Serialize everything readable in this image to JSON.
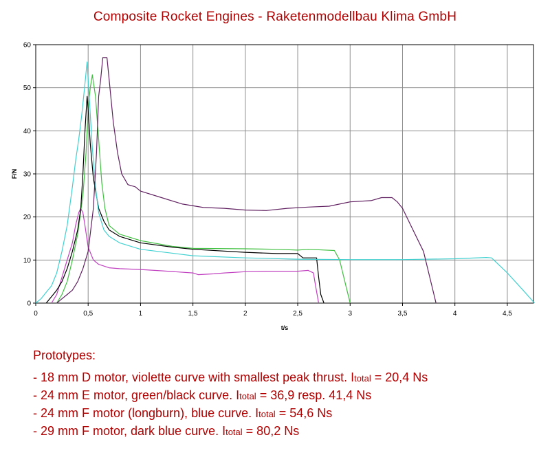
{
  "chart_data": {
    "type": "line",
    "title": "Composite Rocket Engines - Raketenmodellbau Klima GmbH",
    "xlabel": "t/s",
    "ylabel": "F/N",
    "xlim": [
      0,
      4.75
    ],
    "ylim": [
      0,
      60
    ],
    "xticks": [
      "0",
      "0,5",
      "1",
      "1,5",
      "2",
      "2,5",
      "3",
      "3,5",
      "4",
      "4,5"
    ],
    "yticks": [
      "0",
      "10",
      "20",
      "30",
      "40",
      "50",
      "60"
    ],
    "grid": true,
    "legend": "none",
    "background": "#ffffff",
    "series": [
      {
        "color": "#c040c0",
        "points": [
          [
            0.15,
            0
          ],
          [
            0.2,
            2
          ],
          [
            0.25,
            6
          ],
          [
            0.3,
            10
          ],
          [
            0.35,
            14
          ],
          [
            0.38,
            18
          ],
          [
            0.41,
            21
          ],
          [
            0.43,
            22
          ],
          [
            0.45,
            21
          ],
          [
            0.47,
            18
          ],
          [
            0.5,
            13
          ],
          [
            0.55,
            10
          ],
          [
            0.6,
            9
          ],
          [
            0.7,
            8.2
          ],
          [
            0.8,
            8
          ],
          [
            1,
            7.8
          ],
          [
            1.2,
            7.5
          ],
          [
            1.5,
            7
          ],
          [
            1.55,
            6.6
          ],
          [
            1.7,
            6.8
          ],
          [
            1.8,
            7
          ],
          [
            2,
            7.3
          ],
          [
            2.2,
            7.4
          ],
          [
            2.5,
            7.4
          ],
          [
            2.6,
            7.6
          ],
          [
            2.65,
            7
          ],
          [
            2.67,
            4
          ],
          [
            2.7,
            0
          ]
        ]
      },
      {
        "color": "#40c040",
        "points": [
          [
            0.2,
            0
          ],
          [
            0.25,
            2
          ],
          [
            0.3,
            5
          ],
          [
            0.35,
            10
          ],
          [
            0.4,
            16
          ],
          [
            0.45,
            25
          ],
          [
            0.48,
            35
          ],
          [
            0.5,
            45
          ],
          [
            0.52,
            50
          ],
          [
            0.54,
            53
          ],
          [
            0.57,
            48
          ],
          [
            0.6,
            38
          ],
          [
            0.63,
            28
          ],
          [
            0.66,
            22
          ],
          [
            0.7,
            18
          ],
          [
            0.8,
            16
          ],
          [
            1,
            14.5
          ],
          [
            1.3,
            13.2
          ],
          [
            1.5,
            12.7
          ],
          [
            2,
            12.6
          ],
          [
            2.3,
            12.5
          ],
          [
            2.5,
            12.3
          ],
          [
            2.6,
            12.5
          ],
          [
            2.85,
            12.2
          ],
          [
            2.9,
            10
          ],
          [
            2.95,
            5
          ],
          [
            3,
            0
          ]
        ]
      },
      {
        "color": "#000000",
        "points": [
          [
            0.1,
            0
          ],
          [
            0.15,
            1.5
          ],
          [
            0.2,
            3
          ],
          [
            0.25,
            5
          ],
          [
            0.3,
            8
          ],
          [
            0.35,
            12
          ],
          [
            0.4,
            17
          ],
          [
            0.43,
            22
          ],
          [
            0.45,
            30
          ],
          [
            0.47,
            40
          ],
          [
            0.49,
            48
          ],
          [
            0.5,
            45
          ],
          [
            0.52,
            37
          ],
          [
            0.55,
            29
          ],
          [
            0.6,
            22
          ],
          [
            0.65,
            19
          ],
          [
            0.7,
            17
          ],
          [
            0.8,
            15.5
          ],
          [
            1,
            14
          ],
          [
            1.3,
            13
          ],
          [
            1.5,
            12.5
          ],
          [
            2,
            11.8
          ],
          [
            2.3,
            11.5
          ],
          [
            2.5,
            11.5
          ],
          [
            2.55,
            10.5
          ],
          [
            2.68,
            10.5
          ],
          [
            2.7,
            6
          ],
          [
            2.72,
            2
          ],
          [
            2.75,
            0
          ]
        ]
      },
      {
        "color": "#40d0d0",
        "points": [
          [
            0,
            0
          ],
          [
            0.05,
            1
          ],
          [
            0.1,
            2.5
          ],
          [
            0.15,
            4
          ],
          [
            0.2,
            7
          ],
          [
            0.25,
            12
          ],
          [
            0.3,
            18
          ],
          [
            0.35,
            27
          ],
          [
            0.38,
            33
          ],
          [
            0.41,
            38
          ],
          [
            0.44,
            44
          ],
          [
            0.47,
            51
          ],
          [
            0.49,
            56
          ],
          [
            0.51,
            48
          ],
          [
            0.54,
            36
          ],
          [
            0.57,
            27
          ],
          [
            0.6,
            21
          ],
          [
            0.65,
            17
          ],
          [
            0.7,
            15.5
          ],
          [
            0.8,
            14
          ],
          [
            1,
            12.5
          ],
          [
            1.5,
            11
          ],
          [
            2,
            10.5
          ],
          [
            2.5,
            10.2
          ],
          [
            3,
            10.1
          ],
          [
            3.5,
            10.1
          ],
          [
            4,
            10.3
          ],
          [
            4.3,
            10.6
          ],
          [
            4.35,
            10.5
          ],
          [
            4.5,
            7
          ],
          [
            4.65,
            3
          ],
          [
            4.76,
            0
          ]
        ]
      },
      {
        "color": "#602060",
        "points": [
          [
            0.2,
            0
          ],
          [
            0.25,
            1
          ],
          [
            0.3,
            2
          ],
          [
            0.35,
            3
          ],
          [
            0.4,
            5
          ],
          [
            0.45,
            8
          ],
          [
            0.5,
            12
          ],
          [
            0.55,
            22
          ],
          [
            0.58,
            35
          ],
          [
            0.6,
            48
          ],
          [
            0.62,
            52
          ],
          [
            0.64,
            57
          ],
          [
            0.68,
            57
          ],
          [
            0.7,
            52
          ],
          [
            0.74,
            42
          ],
          [
            0.78,
            35
          ],
          [
            0.82,
            30
          ],
          [
            0.88,
            27.5
          ],
          [
            0.95,
            27
          ],
          [
            1,
            26
          ],
          [
            1.2,
            24.5
          ],
          [
            1.4,
            23
          ],
          [
            1.6,
            22.2
          ],
          [
            1.8,
            22
          ],
          [
            2,
            21.6
          ],
          [
            2.2,
            21.5
          ],
          [
            2.4,
            22
          ],
          [
            2.6,
            22.3
          ],
          [
            2.8,
            22.5
          ],
          [
            3,
            23.5
          ],
          [
            3.2,
            23.8
          ],
          [
            3.3,
            24.5
          ],
          [
            3.4,
            24.5
          ],
          [
            3.45,
            23.5
          ],
          [
            3.5,
            22
          ],
          [
            3.6,
            17
          ],
          [
            3.7,
            12
          ],
          [
            3.75,
            7
          ],
          [
            3.8,
            2
          ],
          [
            3.82,
            0
          ]
        ]
      }
    ]
  },
  "notes": {
    "heading": "Prototypes:",
    "lines": [
      {
        "text": "- 18 mm D motor, violette curve with smallest peak thrust. I",
        "sub": "total",
        "value": " = 20,4 Ns"
      },
      {
        "text": "- 24 mm E motor, green/black curve. I",
        "sub": "total",
        "value": " = 36,9 resp. 41,4 Ns"
      },
      {
        "text": "- 24 mm F motor (longburn), blue curve. I",
        "sub": "total",
        "value": " = 54,6 Ns"
      },
      {
        "text": "- 29 mm F motor, dark blue curve. I",
        "sub": "total",
        "value": " = 80,2 Ns"
      }
    ]
  }
}
